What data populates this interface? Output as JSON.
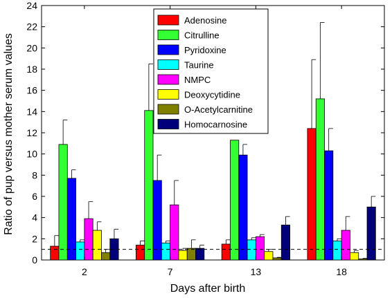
{
  "chart_data": {
    "type": "bar",
    "xlabel": "Days after birth",
    "ylabel": "Ratio of pup versus mother serum values",
    "ylim": [
      0,
      24
    ],
    "yticks": [
      0,
      2,
      4,
      6,
      8,
      10,
      12,
      14,
      16,
      18,
      20,
      22,
      24
    ],
    "categories": [
      "2",
      "7",
      "13",
      "18"
    ],
    "reference_line": {
      "y": 1,
      "style": "dashed"
    },
    "legend_position": "top-center",
    "series": [
      {
        "name": "Adenosine",
        "color": "#ff0000",
        "values": [
          1.3,
          1.4,
          1.5,
          12.4
        ],
        "errors": [
          1.0,
          0.4,
          0.4,
          6.5
        ]
      },
      {
        "name": "Citrulline",
        "color": "#33ff33",
        "values": [
          10.9,
          14.1,
          11.3,
          15.2
        ],
        "errors": [
          2.3,
          4.4,
          0,
          7.2
        ]
      },
      {
        "name": "Pyridoxine",
        "color": "#0000ff",
        "values": [
          7.7,
          7.5,
          9.9,
          10.3
        ],
        "errors": [
          0.8,
          2.4,
          1.0,
          2.1
        ]
      },
      {
        "name": "Taurine",
        "color": "#00ffff",
        "values": [
          1.7,
          1.6,
          1.9,
          1.8
        ],
        "errors": [
          0.2,
          0.2,
          0.2,
          0.2
        ]
      },
      {
        "name": "NMPC",
        "color": "#ff00ff",
        "values": [
          3.9,
          5.2,
          2.2,
          2.8
        ],
        "errors": [
          1.6,
          2.3,
          0.2,
          1.3
        ]
      },
      {
        "name": "Deoxycytidine",
        "color": "#ffff00",
        "values": [
          2.8,
          0.9,
          0.8,
          0.7
        ],
        "errors": [
          0.8,
          0.2,
          0.2,
          0.2
        ]
      },
      {
        "name": "O-Acetylcarnitine",
        "color": "#808000",
        "values": [
          0.7,
          1.1,
          0.2,
          0.1
        ],
        "errors": [
          0.3,
          0.8,
          0.05,
          0.05
        ]
      },
      {
        "name": "Homocarnosine",
        "color": "#00007b",
        "values": [
          2.0,
          1.1,
          3.3,
          5.0
        ],
        "errors": [
          0.9,
          0.3,
          0.8,
          1.0
        ]
      }
    ]
  }
}
